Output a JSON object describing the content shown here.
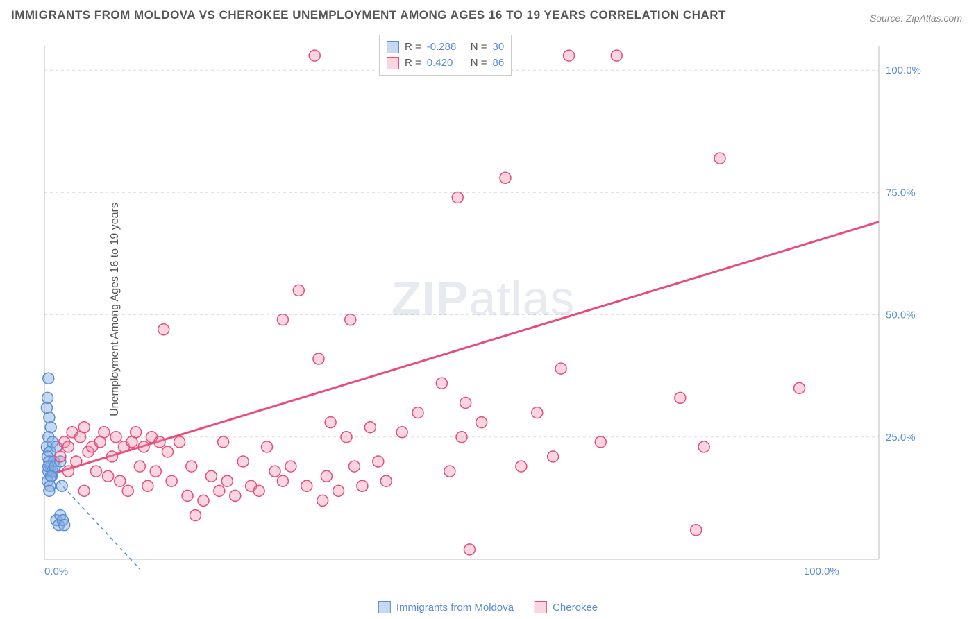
{
  "title": "IMMIGRANTS FROM MOLDOVA VS CHEROKEE UNEMPLOYMENT AMONG AGES 16 TO 19 YEARS CORRELATION CHART",
  "source": "Source: ZipAtlas.com",
  "ylabel": "Unemployment Among Ages 16 to 19 years",
  "watermark_bold": "ZIP",
  "watermark_thin": "atlas",
  "chart": {
    "type": "scatter",
    "xlim": [
      0,
      105
    ],
    "ylim": [
      0,
      105
    ],
    "xticks": [
      {
        "v": 0,
        "label": "0.0%"
      },
      {
        "v": 100,
        "label": "100.0%"
      }
    ],
    "yticks": [
      {
        "v": 25,
        "label": "25.0%"
      },
      {
        "v": 50,
        "label": "50.0%"
      },
      {
        "v": 75,
        "label": "75.0%"
      },
      {
        "v": 100,
        "label": "100.0%"
      }
    ],
    "grid_color": "#dddddd",
    "axis_color": "#bbbbbb",
    "background_color": "#ffffff",
    "tick_label_color": "#5b8dd6",
    "marker_radius": 8,
    "marker_stroke_width": 1.5,
    "series": [
      {
        "name": "Immigrants from Moldova",
        "color_fill": "rgba(130,170,225,0.45)",
        "color_stroke": "#5b8dd6",
        "R": "-0.288",
        "N": "30",
        "trend": {
          "x1": 0,
          "y1": 19,
          "x2": 12,
          "y2": -2,
          "stroke": "#5b8dd6",
          "dash": "5 5",
          "width": 1.5
        },
        "points": [
          [
            0.5,
            37
          ],
          [
            0.3,
            31
          ],
          [
            0.6,
            29
          ],
          [
            0.4,
            33
          ],
          [
            0.8,
            27
          ],
          [
            0.5,
            25
          ],
          [
            0.3,
            23
          ],
          [
            0.7,
            22
          ],
          [
            0.4,
            21
          ],
          [
            1.0,
            24
          ],
          [
            0.6,
            20
          ],
          [
            0.8,
            19
          ],
          [
            0.5,
            18
          ],
          [
            1.2,
            20
          ],
          [
            0.9,
            17
          ],
          [
            0.4,
            16
          ],
          [
            0.7,
            15
          ],
          [
            0.5,
            19
          ],
          [
            1.0,
            18
          ],
          [
            1.3,
            19
          ],
          [
            0.6,
            14
          ],
          [
            0.8,
            17
          ],
          [
            1.5,
            23
          ],
          [
            2.0,
            20
          ],
          [
            2.2,
            15
          ],
          [
            1.5,
            8
          ],
          [
            1.8,
            7
          ],
          [
            2.0,
            9
          ],
          [
            2.3,
            8
          ],
          [
            2.5,
            7
          ]
        ]
      },
      {
        "name": "Cherokee",
        "color_fill": "rgba(240,140,165,0.35)",
        "color_stroke": "#e94b7a",
        "R": "0.420",
        "N": "86",
        "trend": {
          "x1": 0,
          "y1": 17,
          "x2": 105,
          "y2": 69,
          "stroke": "#e94b7a",
          "dash": "",
          "width": 3
        },
        "points": [
          [
            2,
            21
          ],
          [
            2.5,
            24
          ],
          [
            3,
            23
          ],
          [
            3,
            18
          ],
          [
            3.5,
            26
          ],
          [
            4,
            20
          ],
          [
            4.5,
            25
          ],
          [
            5,
            14
          ],
          [
            5,
            27
          ],
          [
            5.5,
            22
          ],
          [
            6,
            23
          ],
          [
            6.5,
            18
          ],
          [
            7,
            24
          ],
          [
            7.5,
            26
          ],
          [
            8,
            17
          ],
          [
            8.5,
            21
          ],
          [
            9,
            25
          ],
          [
            9.5,
            16
          ],
          [
            10,
            23
          ],
          [
            10.5,
            14
          ],
          [
            11,
            24
          ],
          [
            11.5,
            26
          ],
          [
            12,
            19
          ],
          [
            12.5,
            23
          ],
          [
            13,
            15
          ],
          [
            13.5,
            25
          ],
          [
            14,
            18
          ],
          [
            14.5,
            24
          ],
          [
            15,
            47
          ],
          [
            15.5,
            22
          ],
          [
            16,
            16
          ],
          [
            17,
            24
          ],
          [
            18,
            13
          ],
          [
            18.5,
            19
          ],
          [
            19,
            9
          ],
          [
            20,
            12
          ],
          [
            21,
            17
          ],
          [
            22,
            14
          ],
          [
            22.5,
            24
          ],
          [
            23,
            16
          ],
          [
            24,
            13
          ],
          [
            25,
            20
          ],
          [
            26,
            15
          ],
          [
            27,
            14
          ],
          [
            28,
            23
          ],
          [
            29,
            18
          ],
          [
            30,
            49
          ],
          [
            30,
            16
          ],
          [
            31,
            19
          ],
          [
            32,
            55
          ],
          [
            33,
            15
          ],
          [
            34,
            103
          ],
          [
            34.5,
            41
          ],
          [
            35,
            12
          ],
          [
            35.5,
            17
          ],
          [
            36,
            28
          ],
          [
            37,
            14
          ],
          [
            38,
            25
          ],
          [
            38.5,
            49
          ],
          [
            39,
            19
          ],
          [
            40,
            15
          ],
          [
            41,
            27
          ],
          [
            42,
            20
          ],
          [
            43,
            16
          ],
          [
            45,
            26
          ],
          [
            47,
            30
          ],
          [
            50,
            36
          ],
          [
            51,
            18
          ],
          [
            52,
            74
          ],
          [
            52.5,
            25
          ],
          [
            53,
            32
          ],
          [
            53.5,
            2
          ],
          [
            55,
            28
          ],
          [
            58,
            78
          ],
          [
            60,
            19
          ],
          [
            62,
            30
          ],
          [
            64,
            21
          ],
          [
            65,
            39
          ],
          [
            66,
            103
          ],
          [
            70,
            24
          ],
          [
            72,
            103
          ],
          [
            80,
            33
          ],
          [
            82,
            6
          ],
          [
            83,
            23
          ],
          [
            85,
            82
          ],
          [
            95,
            35
          ]
        ]
      }
    ]
  },
  "legend_bottom": [
    {
      "label": "Immigrants from Moldova",
      "fill": "rgba(130,170,225,0.45)",
      "stroke": "#5b8dd6"
    },
    {
      "label": "Cherokee",
      "fill": "rgba(240,140,165,0.35)",
      "stroke": "#e94b7a"
    }
  ],
  "legend_stats_labels": {
    "R": "R =",
    "N": "N ="
  }
}
